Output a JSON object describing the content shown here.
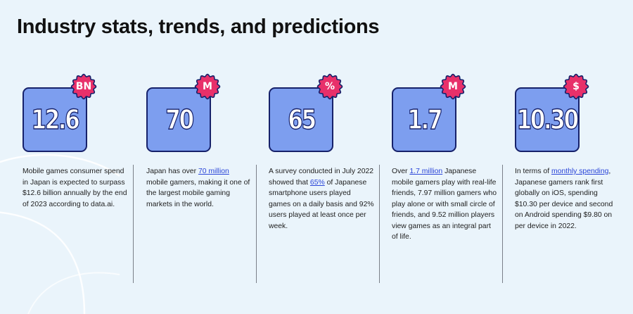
{
  "title": "Industry stats, trends, and predictions",
  "colors": {
    "tile": "#7d9eef",
    "tile_border": "#16216a",
    "badge": "#e8306a",
    "link": "#2a45d8",
    "background": "#eaf4fb"
  },
  "cards": [
    {
      "value": "12.6",
      "badge": "BN",
      "desc_before": "Mobile games consumer spend  in Japan is expected to surpass  $12.6 billion annually by the end of 2023 according to data.ai.",
      "link": "",
      "desc_after": ""
    },
    {
      "value": "70",
      "badge": "M",
      "desc_before": "Japan has over ",
      "link": "70 million",
      "desc_after": " mobile gamers, making it one of the largest mobile gaming markets in the world."
    },
    {
      "value": "65",
      "badge": "%",
      "desc_before": "A survey conducted in July 2022 showed that ",
      "link": "65%",
      "desc_after": " of Japanese smartphone users played games on a daily basis and 92% users played at least once per week."
    },
    {
      "value": "1.7",
      "badge": "M",
      "desc_before": "Over ",
      "link": "1.7 million",
      "desc_after": " Japanese mobile gamers play with real-life  friends, 7.97 million gamers who play alone or with small circle of friends, and 9.52 million players view games as an integral part of life."
    },
    {
      "value": "10.30",
      "badge": "$",
      "desc_before": "In terms of ",
      "link": "monthly spending",
      "desc_after": ", Japanese gamers rank first globally on iOS, spending $10.30 per device and second on Android spending $9.80 on per device in 2022."
    }
  ]
}
